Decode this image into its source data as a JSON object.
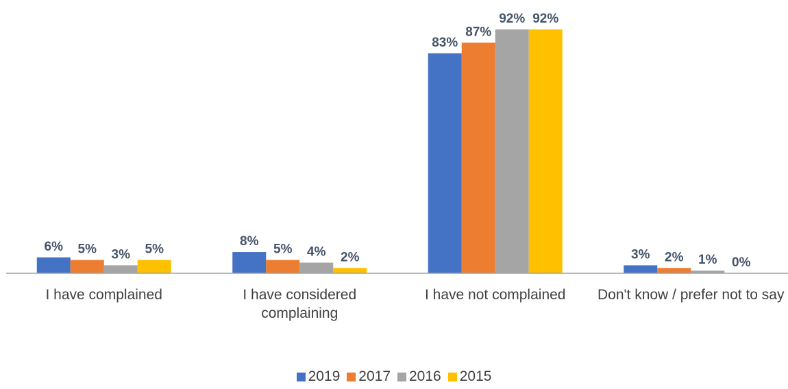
{
  "chart_data": {
    "type": "bar",
    "categories": [
      "I have complained",
      "I have considered complaining",
      "I have not complained",
      "Don't know / prefer not to say"
    ],
    "series": [
      {
        "name": "2019",
        "color": "#4472c4",
        "values": [
          6,
          8,
          83,
          3
        ],
        "value_labels": [
          "6%",
          "8%",
          "83%",
          "3%"
        ]
      },
      {
        "name": "2017",
        "color": "#ed7d31",
        "values": [
          5,
          5,
          87,
          2
        ],
        "value_labels": [
          "5%",
          "5%",
          "87%",
          "2%"
        ]
      },
      {
        "name": "2016",
        "color": "#a5a5a5",
        "values": [
          3,
          4,
          92,
          1
        ],
        "value_labels": [
          "3%",
          "4%",
          "92%",
          "1%"
        ]
      },
      {
        "name": "2015",
        "color": "#ffc000",
        "values": [
          5,
          2,
          92,
          0
        ],
        "value_labels": [
          "5%",
          "2%",
          "92%",
          "0%"
        ]
      }
    ],
    "legend": "bottom"
  }
}
